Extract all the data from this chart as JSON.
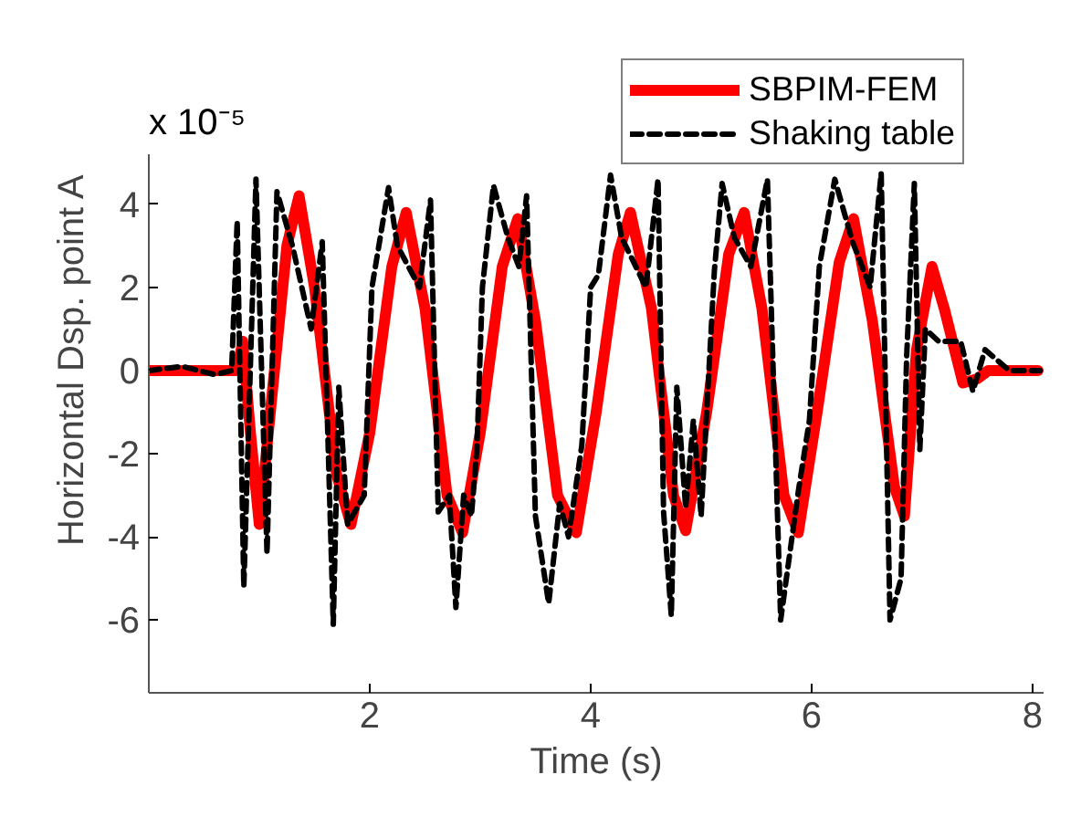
{
  "chart_data": {
    "type": "line",
    "xlabel": "Time (s)",
    "ylabel": "Horizontal Dsp.  point A",
    "annotations": [
      "x 10⁻⁵"
    ],
    "xlim": [
      0,
      8.1
    ],
    "ylim": [
      -7.75,
      5.2
    ],
    "xticks": [
      2,
      4,
      6,
      8
    ],
    "yticks": [
      -6,
      -4,
      -2,
      0,
      2,
      4
    ],
    "grid": false,
    "legend": "top right",
    "series": [
      {
        "name": "SBPIM-FEM",
        "color": "#ff0000",
        "line_style": "solid",
        "x": [
          0,
          0.3,
          0.6,
          0.8,
          0.85,
          0.92,
          1.0,
          1.1,
          1.25,
          1.36,
          1.5,
          1.7,
          1.83,
          2.0,
          2.2,
          2.33,
          2.5,
          2.7,
          2.84,
          3.0,
          3.2,
          3.34,
          3.5,
          3.7,
          3.87,
          4.05,
          4.25,
          4.36,
          4.55,
          4.75,
          4.86,
          5.05,
          5.25,
          5.39,
          5.55,
          5.75,
          5.88,
          6.05,
          6.25,
          6.38,
          6.55,
          6.75,
          6.84,
          6.95,
          7.09,
          7.2,
          7.37,
          7.5,
          7.6,
          7.8,
          8.05
        ],
        "values": [
          0,
          0,
          0,
          0,
          0.7,
          -1.5,
          -3.7,
          -1,
          3,
          4.2,
          2,
          -2.5,
          -3.7,
          -1.5,
          2.5,
          3.8,
          1.5,
          -3,
          -3.9,
          -1.5,
          2.5,
          3.65,
          1.2,
          -3,
          -3.9,
          -1,
          2.8,
          3.8,
          1.5,
          -3,
          -3.85,
          -1,
          2.8,
          3.8,
          1.5,
          -3,
          -3.9,
          -1,
          2.6,
          3.65,
          1.2,
          -2.8,
          -3.5,
          0.5,
          2.5,
          1.5,
          -0.3,
          -0.2,
          0,
          0,
          0
        ]
      },
      {
        "name": "Shaking table",
        "color": "#000000",
        "line_style": "dashed",
        "x": [
          0,
          0.3,
          0.6,
          0.75,
          0.8,
          0.86,
          0.97,
          1.07,
          1.16,
          1.3,
          1.47,
          1.57,
          1.67,
          1.72,
          1.8,
          1.95,
          2.02,
          2.17,
          2.25,
          2.45,
          2.55,
          2.62,
          2.72,
          2.78,
          2.85,
          2.92,
          2.97,
          3.02,
          3.12,
          3.25,
          3.35,
          3.42,
          3.5,
          3.62,
          3.72,
          3.8,
          3.92,
          4.0,
          4.07,
          4.18,
          4.28,
          4.5,
          4.61,
          4.66,
          4.73,
          4.78,
          4.86,
          4.93,
          5.0,
          5.05,
          5.12,
          5.19,
          5.3,
          5.45,
          5.6,
          5.72,
          5.88,
          5.98,
          6.07,
          6.21,
          6.37,
          6.53,
          6.63,
          6.71,
          6.81,
          6.86,
          6.93,
          6.98,
          7.03,
          7.15,
          7.35,
          7.46,
          7.57,
          7.79,
          8.07
        ],
        "values": [
          0,
          0.1,
          -0.1,
          0,
          3.6,
          -5.2,
          4.6,
          -4.4,
          4.3,
          3,
          1,
          3.1,
          -6.1,
          -0.4,
          -3.7,
          -3,
          2,
          4.4,
          3,
          2,
          4.1,
          -3.4,
          -3,
          -5.7,
          -3,
          -3.5,
          -1.9,
          2,
          4.45,
          3.2,
          2.5,
          4.2,
          -3.5,
          -5.6,
          -3.2,
          -4,
          -1.8,
          2,
          2.3,
          4.7,
          3.2,
          2,
          4.6,
          -3.4,
          -5.9,
          -0.4,
          -3.3,
          -1.2,
          -3.5,
          -1,
          2.4,
          4.5,
          3.2,
          2.5,
          4.6,
          -6,
          -2.9,
          -1.2,
          2.5,
          4.6,
          3.1,
          2,
          4.75,
          -6,
          -5,
          0.3,
          4.5,
          -1.9,
          1,
          0.7,
          0.7,
          -0.5,
          0.5,
          0,
          0
        ]
      }
    ]
  }
}
